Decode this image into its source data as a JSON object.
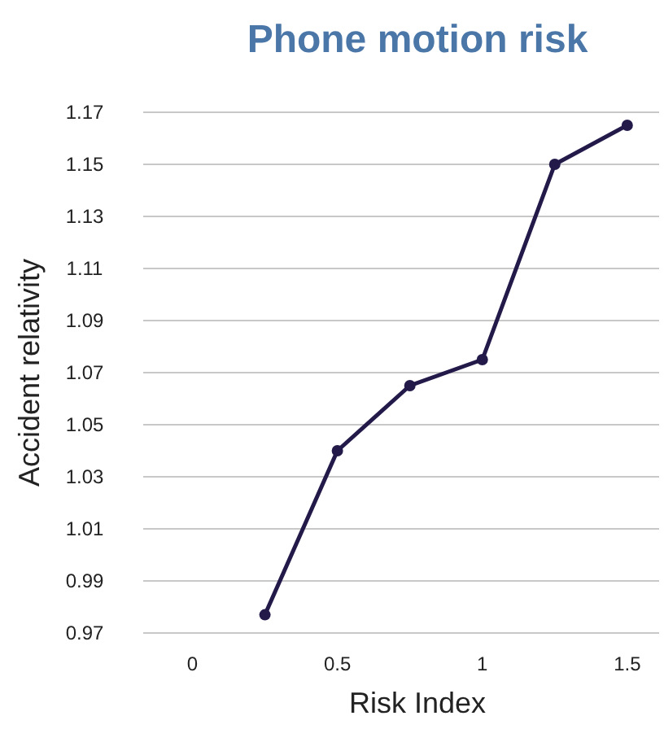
{
  "chart_data": {
    "type": "line",
    "title": "Phone motion risk",
    "xlabel": "Risk Index",
    "ylabel": "Accident relativity",
    "x": [
      0.25,
      0.5,
      0.75,
      1,
      1.25,
      1.5
    ],
    "series": [
      {
        "color": "#231a4a",
        "values": [
          0.977,
          1.04,
          1.065,
          1.075,
          1.15,
          1.165
        ]
      }
    ],
    "xlim": [
      -0.17,
      1.61
    ],
    "xticks": [
      0,
      0.5,
      1,
      1.5
    ],
    "ylim": [
      0.97,
      1.17
    ],
    "yticks": [
      0.97,
      0.99,
      1.01,
      1.03,
      1.05,
      1.07,
      1.09,
      1.11,
      1.13,
      1.15,
      1.17
    ],
    "grid": "y",
    "marker": "circle",
    "line_style": "solid"
  }
}
